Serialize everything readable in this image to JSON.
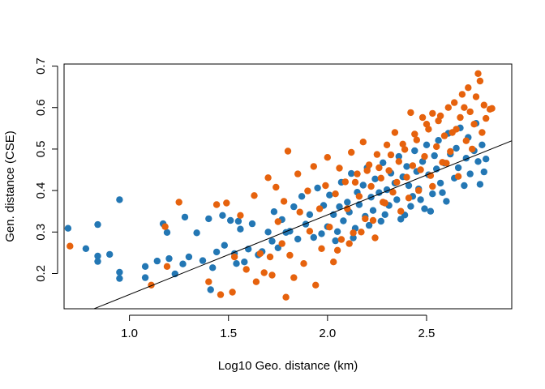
{
  "chart_data": {
    "type": "scatter",
    "title": "",
    "xlabel": "Log10 Geo. distance (km)",
    "ylabel": "Gen. distance (CSE)",
    "xlim": [
      0.67,
      2.93
    ],
    "ylim": [
      0.115,
      0.705
    ],
    "x_ticks": [
      1.0,
      1.5,
      2.0,
      2.5
    ],
    "x_tick_labels": [
      "1.0",
      "1.5",
      "2.0",
      "2.5"
    ],
    "y_ticks": [
      0.2,
      0.3,
      0.4,
      0.5,
      0.6,
      0.7
    ],
    "y_tick_labels": [
      "0.2",
      "0.3",
      "0.4",
      "0.5",
      "0.6",
      "0.7"
    ],
    "grid": false,
    "legend": "none",
    "colors": {
      "series_blue": "#2377b4",
      "series_orange": "#e6620d",
      "line": "#000000"
    },
    "fit_line": {
      "x": [
        0.67,
        2.93
      ],
      "y": [
        0.086,
        0.52
      ]
    },
    "series": [
      {
        "color": "#2377b4",
        "points": [
          [
            0.69,
            0.309
          ],
          [
            0.78,
            0.26
          ],
          [
            0.84,
            0.318
          ],
          [
            0.84,
            0.242
          ],
          [
            0.84,
            0.229
          ],
          [
            0.9,
            0.246
          ],
          [
            0.95,
            0.378
          ],
          [
            0.95,
            0.203
          ],
          [
            0.95,
            0.188
          ],
          [
            1.08,
            0.217
          ],
          [
            1.08,
            0.19
          ],
          [
            1.14,
            0.23
          ],
          [
            1.17,
            0.32
          ],
          [
            1.19,
            0.299
          ],
          [
            1.2,
            0.236
          ],
          [
            1.23,
            0.199
          ],
          [
            1.27,
            0.223
          ],
          [
            1.28,
            0.336
          ],
          [
            1.3,
            0.24
          ],
          [
            1.34,
            0.298
          ],
          [
            1.37,
            0.231
          ],
          [
            1.4,
            0.332
          ],
          [
            1.41,
            0.161
          ],
          [
            1.42,
            0.214
          ],
          [
            1.44,
            0.252
          ],
          [
            1.47,
            0.34
          ],
          [
            1.48,
            0.268
          ],
          [
            1.51,
            0.328
          ],
          [
            1.53,
            0.248
          ],
          [
            1.54,
            0.224
          ],
          [
            1.55,
            0.326
          ],
          [
            1.56,
            0.307
          ],
          [
            1.58,
            0.228
          ],
          [
            1.6,
            0.259
          ],
          [
            1.62,
            0.32
          ],
          [
            1.65,
            0.245
          ],
          [
            1.67,
            0.253
          ],
          [
            1.7,
            0.3
          ],
          [
            1.72,
            0.278
          ],
          [
            1.73,
            0.349
          ],
          [
            1.75,
            0.262
          ],
          [
            1.77,
            0.33
          ],
          [
            1.79,
            0.299
          ],
          [
            1.81,
            0.302
          ],
          [
            1.83,
            0.361
          ],
          [
            1.85,
            0.283
          ],
          [
            1.87,
            0.386
          ],
          [
            1.89,
            0.319
          ],
          [
            1.91,
            0.342
          ],
          [
            1.93,
            0.287
          ],
          [
            1.95,
            0.406
          ],
          [
            1.97,
            0.296
          ],
          [
            1.98,
            0.364
          ],
          [
            2.0,
            0.313
          ],
          [
            2.01,
            0.389
          ],
          [
            2.03,
            0.342
          ],
          [
            2.04,
            0.279
          ],
          [
            2.06,
            0.361
          ],
          [
            2.07,
            0.42
          ],
          [
            2.08,
            0.327
          ],
          [
            2.1,
            0.372
          ],
          [
            2.11,
            0.348
          ],
          [
            2.12,
            0.441
          ],
          [
            2.14,
            0.309
          ],
          [
            2.15,
            0.396
          ],
          [
            2.16,
            0.366
          ],
          [
            2.18,
            0.413
          ],
          [
            2.19,
            0.338
          ],
          [
            2.2,
            0.455
          ],
          [
            2.22,
            0.384
          ],
          [
            2.23,
            0.352
          ],
          [
            2.24,
            0.428
          ],
          [
            2.26,
            0.395
          ],
          [
            2.27,
            0.326
          ],
          [
            2.28,
            0.467
          ],
          [
            2.3,
            0.402
          ],
          [
            2.31,
            0.364
          ],
          [
            2.32,
            0.442
          ],
          [
            2.34,
            0.418
          ],
          [
            2.35,
            0.378
          ],
          [
            2.36,
            0.482
          ],
          [
            2.38,
            0.433
          ],
          [
            2.39,
            0.341
          ],
          [
            2.4,
            0.458
          ],
          [
            2.41,
            0.412
          ],
          [
            2.43,
            0.386
          ],
          [
            2.44,
            0.496
          ],
          [
            2.45,
            0.446
          ],
          [
            2.46,
            0.404
          ],
          [
            2.48,
            0.47
          ],
          [
            2.49,
            0.356
          ],
          [
            2.5,
            0.51
          ],
          [
            2.51,
            0.438
          ],
          [
            2.53,
            0.392
          ],
          [
            2.54,
            0.484
          ],
          [
            2.55,
            0.452
          ],
          [
            2.56,
            0.521
          ],
          [
            2.57,
            0.418
          ],
          [
            2.59,
            0.466
          ],
          [
            2.6,
            0.374
          ],
          [
            2.61,
            0.538
          ],
          [
            2.62,
            0.488
          ],
          [
            2.64,
            0.43
          ],
          [
            2.65,
            0.502
          ],
          [
            2.66,
            0.455
          ],
          [
            2.67,
            0.551
          ],
          [
            2.69,
            0.412
          ],
          [
            2.7,
            0.478
          ],
          [
            2.71,
            0.528
          ],
          [
            2.72,
            0.44
          ],
          [
            2.74,
            0.496
          ],
          [
            2.75,
            0.562
          ],
          [
            2.76,
            0.47
          ],
          [
            2.77,
            0.415
          ],
          [
            2.78,
            0.51
          ],
          [
            2.79,
            0.445
          ],
          [
            2.8,
            0.476
          ],
          [
            2.05,
            0.301
          ],
          [
            2.13,
            0.286
          ],
          [
            2.21,
            0.316
          ],
          [
            2.29,
            0.342
          ],
          [
            2.37,
            0.331
          ],
          [
            2.42,
            0.362
          ],
          [
            2.47,
            0.378
          ],
          [
            2.52,
            0.35
          ],
          [
            2.58,
            0.395
          ]
        ]
      },
      {
        "color": "#e6620d",
        "points": [
          [
            0.7,
            0.266
          ],
          [
            1.11,
            0.172
          ],
          [
            1.18,
            0.313
          ],
          [
            1.19,
            0.217
          ],
          [
            1.25,
            0.372
          ],
          [
            1.4,
            0.18
          ],
          [
            1.44,
            0.366
          ],
          [
            1.46,
            0.149
          ],
          [
            1.49,
            0.37
          ],
          [
            1.52,
            0.155
          ],
          [
            1.53,
            0.24
          ],
          [
            1.56,
            0.34
          ],
          [
            1.59,
            0.21
          ],
          [
            1.63,
            0.388
          ],
          [
            1.64,
            0.18
          ],
          [
            1.66,
            0.248
          ],
          [
            1.68,
            0.202
          ],
          [
            1.7,
            0.431
          ],
          [
            1.71,
            0.24
          ],
          [
            1.72,
            0.196
          ],
          [
            1.74,
            0.408
          ],
          [
            1.75,
            0.325
          ],
          [
            1.77,
            0.272
          ],
          [
            1.78,
            0.374
          ],
          [
            1.79,
            0.143
          ],
          [
            1.8,
            0.495
          ],
          [
            1.81,
            0.244
          ],
          [
            1.83,
            0.19
          ],
          [
            1.85,
            0.44
          ],
          [
            1.86,
            0.348
          ],
          [
            1.88,
            0.224
          ],
          [
            1.9,
            0.399
          ],
          [
            1.91,
            0.302
          ],
          [
            1.93,
            0.458
          ],
          [
            1.94,
            0.172
          ],
          [
            1.96,
            0.356
          ],
          [
            1.97,
            0.26
          ],
          [
            1.99,
            0.412
          ],
          [
            2.0,
            0.48
          ],
          [
            2.01,
            0.312
          ],
          [
            2.03,
            0.228
          ],
          [
            2.04,
            0.392
          ],
          [
            2.06,
            0.454
          ],
          [
            2.07,
            0.282
          ],
          [
            2.09,
            0.421
          ],
          [
            2.1,
            0.356
          ],
          [
            2.12,
            0.492
          ],
          [
            2.13,
            0.298
          ],
          [
            2.15,
            0.44
          ],
          [
            2.16,
            0.386
          ],
          [
            2.18,
            0.517
          ],
          [
            2.19,
            0.332
          ],
          [
            2.21,
            0.462
          ],
          [
            2.22,
            0.41
          ],
          [
            2.24,
            0.286
          ],
          [
            2.25,
            0.487
          ],
          [
            2.27,
            0.43
          ],
          [
            2.28,
            0.372
          ],
          [
            2.3,
            0.51
          ],
          [
            2.31,
            0.448
          ],
          [
            2.33,
            0.396
          ],
          [
            2.34,
            0.54
          ],
          [
            2.36,
            0.47
          ],
          [
            2.37,
            0.35
          ],
          [
            2.39,
            0.499
          ],
          [
            2.4,
            0.432
          ],
          [
            2.42,
            0.588
          ],
          [
            2.43,
            0.46
          ],
          [
            2.45,
            0.522
          ],
          [
            2.46,
            0.4
          ],
          [
            2.48,
            0.576
          ],
          [
            2.49,
            0.482
          ],
          [
            2.51,
            0.548
          ],
          [
            2.52,
            0.436
          ],
          [
            2.53,
            0.586
          ],
          [
            2.55,
            0.506
          ],
          [
            2.56,
            0.568
          ],
          [
            2.58,
            0.468
          ],
          [
            2.59,
            0.532
          ],
          [
            2.61,
            0.6
          ],
          [
            2.62,
            0.494
          ],
          [
            2.64,
            0.612
          ],
          [
            2.65,
            0.548
          ],
          [
            2.67,
            0.576
          ],
          [
            2.68,
            0.632
          ],
          [
            2.7,
            0.52
          ],
          [
            2.71,
            0.648
          ],
          [
            2.72,
            0.59
          ],
          [
            2.74,
            0.56
          ],
          [
            2.75,
            0.626
          ],
          [
            2.76,
            0.682
          ],
          [
            2.77,
            0.664
          ],
          [
            2.78,
            0.54
          ],
          [
            2.79,
            0.606
          ],
          [
            2.8,
            0.574
          ],
          [
            2.82,
            0.596
          ],
          [
            2.83,
            0.598
          ],
          [
            2.05,
            0.256
          ],
          [
            2.11,
            0.272
          ],
          [
            2.17,
            0.3
          ],
          [
            2.23,
            0.328
          ],
          [
            2.29,
            0.37
          ],
          [
            2.35,
            0.42
          ],
          [
            2.41,
            0.382
          ],
          [
            2.47,
            0.45
          ],
          [
            2.53,
            0.41
          ],
          [
            2.6,
            0.466
          ],
          [
            2.66,
            0.434
          ],
          [
            2.73,
            0.5
          ],
          [
            2.26,
            0.455
          ],
          [
            2.32,
            0.486
          ],
          [
            2.38,
            0.512
          ],
          [
            2.44,
            0.536
          ],
          [
            2.5,
            0.56
          ],
          [
            2.57,
            0.58
          ],
          [
            2.63,
            0.54
          ],
          [
            2.69,
            0.6
          ],
          [
            2.14,
            0.42
          ],
          [
            2.2,
            0.448
          ]
        ]
      }
    ]
  }
}
